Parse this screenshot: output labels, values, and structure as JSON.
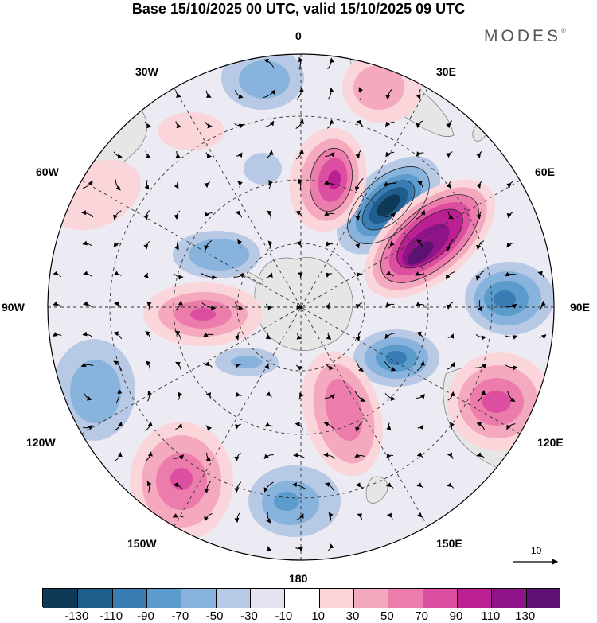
{
  "title": "Base 15/10/2025 00 UTC, valid 15/10/2025 09 UTC",
  "brand": "MODES",
  "brand_mark": "®",
  "longitude_labels": [
    "0",
    "30E",
    "60E",
    "90E",
    "120E",
    "150E",
    "180",
    "150W",
    "120W",
    "90W",
    "60W",
    "30W"
  ],
  "vector_reference": "10",
  "legend": {
    "ticks": [
      "-130",
      "-110",
      "-90",
      "-70",
      "-50",
      "-30",
      "-10",
      "10",
      "30",
      "50",
      "70",
      "90",
      "110",
      "130"
    ],
    "colors": [
      "#0f3a57",
      "#1f5e8c",
      "#3a7db4",
      "#5b9ccc",
      "#87b3dc",
      "#b7c9e5",
      "#e3e2f1",
      "#ffffff",
      "#fad6da",
      "#f4a9be",
      "#ec7cab",
      "#dc4fa0",
      "#bb2092",
      "#8f1487",
      "#5e1172"
    ]
  },
  "colors": {
    "strong_negative": "#1f5e8c",
    "strong_positive": "#8f1487",
    "land": "#ececec"
  }
}
